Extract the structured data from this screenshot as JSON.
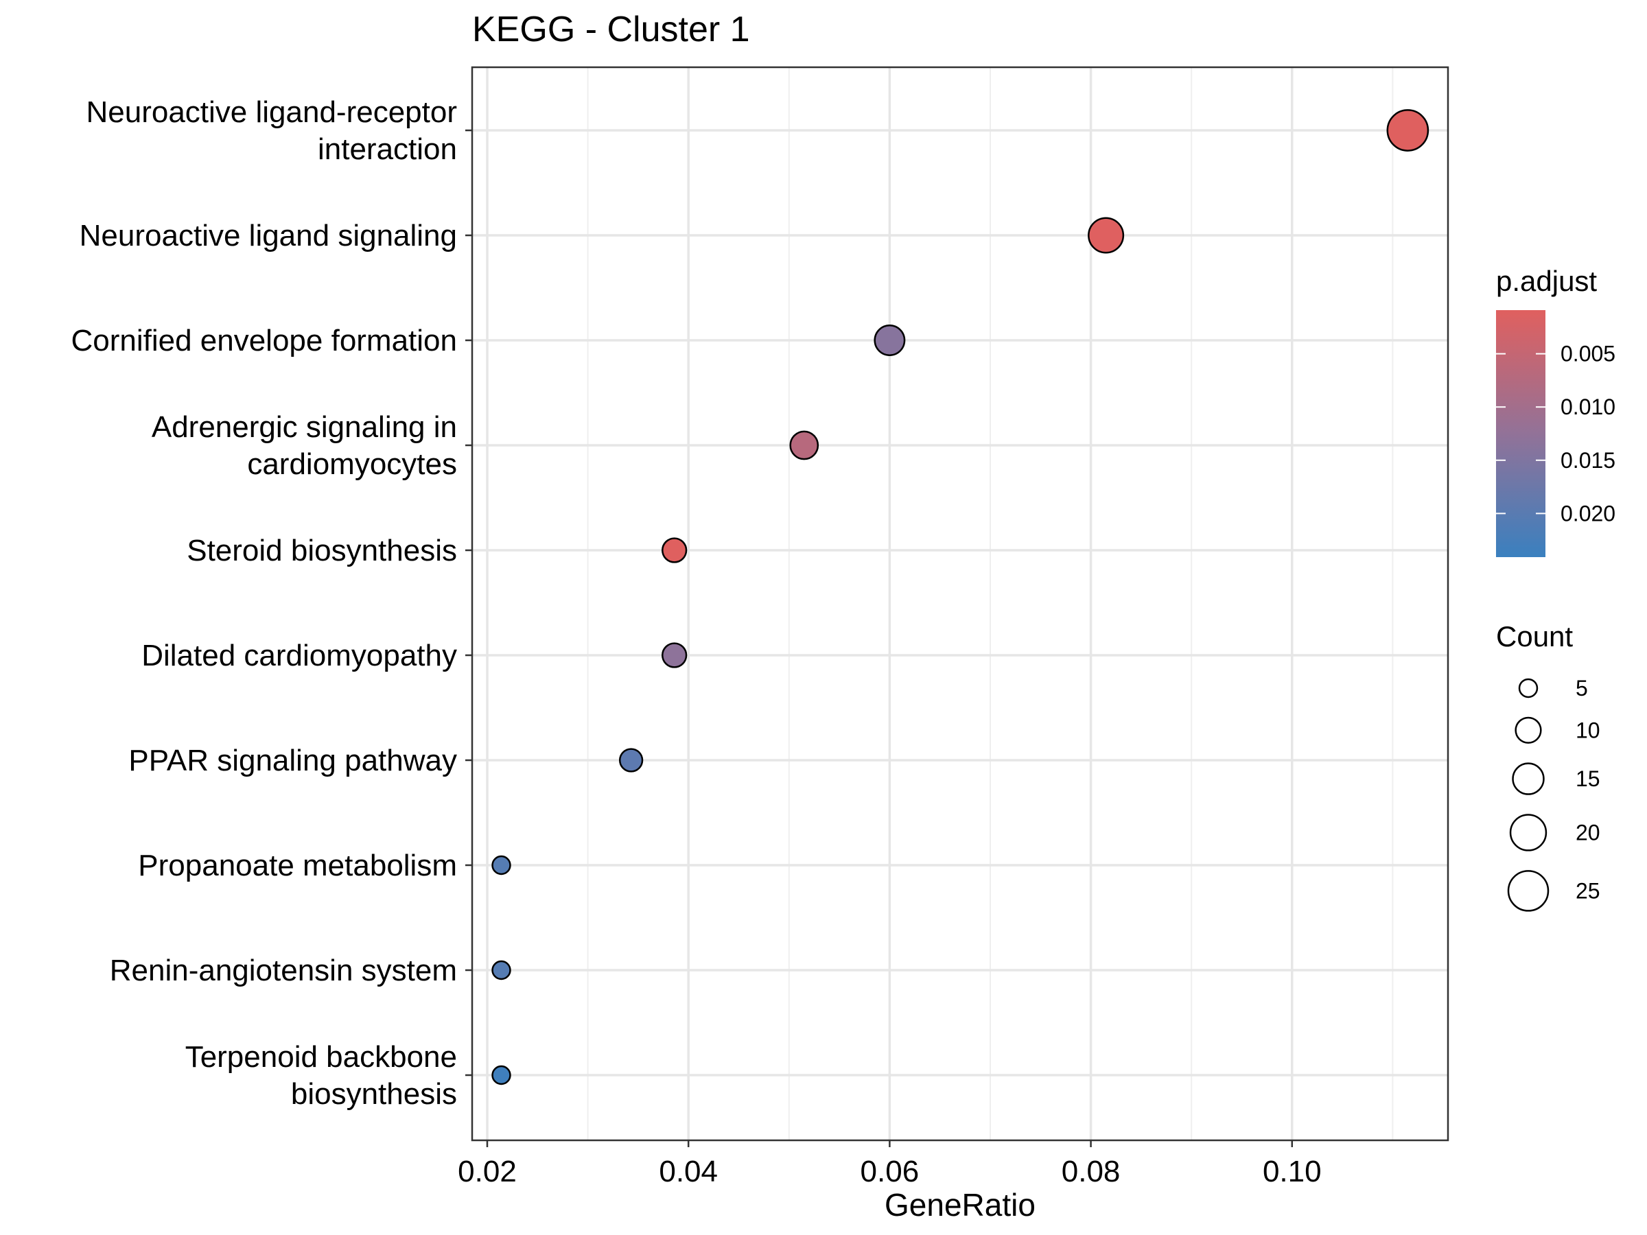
{
  "chart_data": {
    "type": "scatter",
    "title": "KEGG - Cluster 1",
    "xlabel": "GeneRatio",
    "ylabel": "",
    "xlim": [
      0.0185,
      0.1155
    ],
    "x_ticks": [
      "0.02",
      "0.04",
      "0.06",
      "0.08",
      "0.10"
    ],
    "x_tick_values": [
      0.02,
      0.04,
      0.06,
      0.08,
      0.1
    ],
    "grid": true,
    "categories": [
      [
        "Neuroactive ligand-receptor",
        "interaction"
      ],
      [
        "Neuroactive ligand signaling"
      ],
      [
        "Cornified envelope formation"
      ],
      [
        "Adrenergic signaling in",
        "cardiomyocytes"
      ],
      [
        "Steroid biosynthesis"
      ],
      [
        "Dilated cardiomyopathy"
      ],
      [
        "PPAR signaling pathway"
      ],
      [
        "Propanoate metabolism"
      ],
      [
        "Renin-angiotensin system"
      ],
      [
        "Terpenoid backbone",
        "biosynthesis"
      ]
    ],
    "points": [
      {
        "gene_ratio": 0.1115,
        "count": 26,
        "p_adjust": 0.001
      },
      {
        "gene_ratio": 0.0815,
        "count": 19,
        "p_adjust": 0.0011
      },
      {
        "gene_ratio": 0.06,
        "count": 14,
        "p_adjust": 0.014
      },
      {
        "gene_ratio": 0.0515,
        "count": 12,
        "p_adjust": 0.007
      },
      {
        "gene_ratio": 0.0386,
        "count": 9,
        "p_adjust": 0.001
      },
      {
        "gene_ratio": 0.0386,
        "count": 9,
        "p_adjust": 0.013
      },
      {
        "gene_ratio": 0.0343,
        "count": 8,
        "p_adjust": 0.0195
      },
      {
        "gene_ratio": 0.0214,
        "count": 5,
        "p_adjust": 0.0205
      },
      {
        "gene_ratio": 0.0214,
        "count": 5,
        "p_adjust": 0.0205
      },
      {
        "gene_ratio": 0.0214,
        "count": 5,
        "p_adjust": 0.0235
      }
    ],
    "color_legend": {
      "title": "p.adjust",
      "min": 0.0009,
      "max": 0.0241,
      "low_value_color": "#e0605f",
      "high_value_color": "#3a80bf",
      "tick_labels": [
        "0.005",
        "0.010",
        "0.015",
        "0.020"
      ],
      "tick_values": [
        0.005,
        0.01,
        0.015,
        0.02
      ]
    },
    "size_legend": {
      "title": "Count",
      "labels": [
        "5",
        "10",
        "15",
        "20",
        "25"
      ],
      "values": [
        5,
        10,
        15,
        20,
        25
      ]
    }
  }
}
